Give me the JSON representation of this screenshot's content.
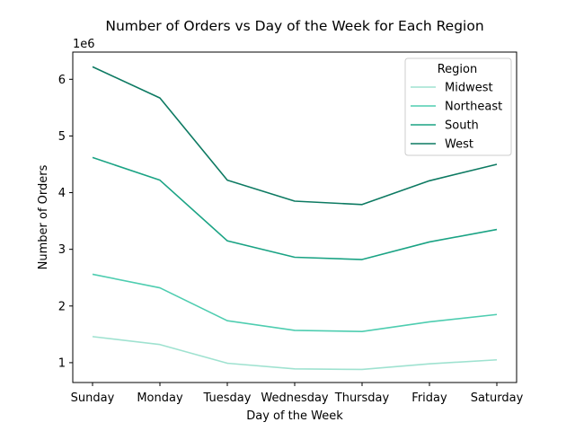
{
  "chart_data": {
    "type": "line",
    "title": "Number of Orders vs Day of the Week for Each Region",
    "xlabel": "Day of the Week",
    "ylabel": "Number of Orders",
    "y_offset_label": "1e6",
    "y_scale_factor": 1000000,
    "categories": [
      "Sunday",
      "Monday",
      "Tuesday",
      "Wednesday",
      "Thursday",
      "Friday",
      "Saturday"
    ],
    "yticks": [
      1000000,
      2000000,
      3000000,
      4000000,
      5000000,
      6000000
    ],
    "ytick_labels": [
      "1",
      "2",
      "3",
      "4",
      "5",
      "6"
    ],
    "ylim": [
      650000,
      6480000
    ],
    "grid": false,
    "legend": {
      "title": "Region",
      "placement": "upper-right"
    },
    "series": [
      {
        "name": "Midwest",
        "color": "#9fe2d0",
        "values": [
          1460000,
          1320000,
          990000,
          890000,
          880000,
          980000,
          1050000
        ]
      },
      {
        "name": "Northeast",
        "color": "#4ecdb0",
        "values": [
          2560000,
          2320000,
          1740000,
          1570000,
          1550000,
          1720000,
          1850000
        ]
      },
      {
        "name": "South",
        "color": "#1aa384",
        "values": [
          4620000,
          4220000,
          3150000,
          2860000,
          2820000,
          3130000,
          3350000
        ]
      },
      {
        "name": "West",
        "color": "#0d7a62",
        "values": [
          6220000,
          5670000,
          4220000,
          3850000,
          3790000,
          4210000,
          4500000
        ]
      }
    ]
  }
}
